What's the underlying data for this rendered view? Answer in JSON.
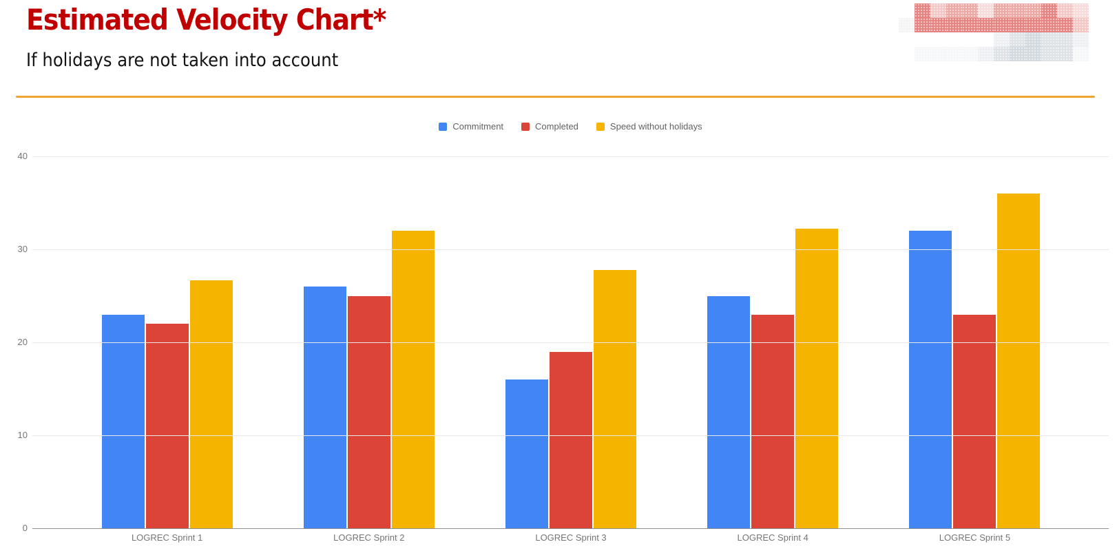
{
  "header": {
    "title": "Estimated Velocity Chart*",
    "subtitle": "If holidays are not taken into account"
  },
  "colors": {
    "title_text": "#c00000",
    "divider": "#f0a431",
    "axis_text": "#757575",
    "axis_line": "#8f8f8f",
    "gridline": "#e8e8e8"
  },
  "chart_data": {
    "type": "bar",
    "title": "",
    "xlabel": "",
    "ylabel": "",
    "categories": [
      "LOGREC Sprint 1",
      "LOGREC Sprint 2",
      "LOGREC Sprint 3",
      "LOGREC Sprint 4",
      "LOGREC Sprint 5"
    ],
    "series": [
      {
        "name": "Commitment",
        "color": "#4285f4",
        "values": [
          23,
          26,
          16,
          25,
          32
        ]
      },
      {
        "name": "Completed",
        "color": "#db4437",
        "values": [
          22,
          25,
          19,
          23,
          23
        ]
      },
      {
        "name": "Speed without holidays",
        "color": "#f4b400",
        "values": [
          26.7,
          32,
          27.8,
          32.2,
          36
        ]
      }
    ],
    "ylim": [
      0,
      40
    ],
    "yticks": [
      40,
      30,
      20,
      10,
      0
    ],
    "grid": true,
    "legend_position": "top-center"
  },
  "mosaic": {
    "palette": {
      "_": "transparent",
      "a": "#f5f5f5",
      "b": "#f2c7c5",
      "c": "#eca9a6",
      "d": "#e58582",
      "e": "#f6dbda",
      "f": "#f2e5cb",
      "g": "#eef0f3",
      "h": "#dde2e7",
      "i": "#d2d9e0",
      "j": "#f6f7f9"
    },
    "rows": [
      "_dbccecccdbef",
      "addddddddddb",
      "______ghihhg",
      "_jjjjghiihhj"
    ]
  }
}
